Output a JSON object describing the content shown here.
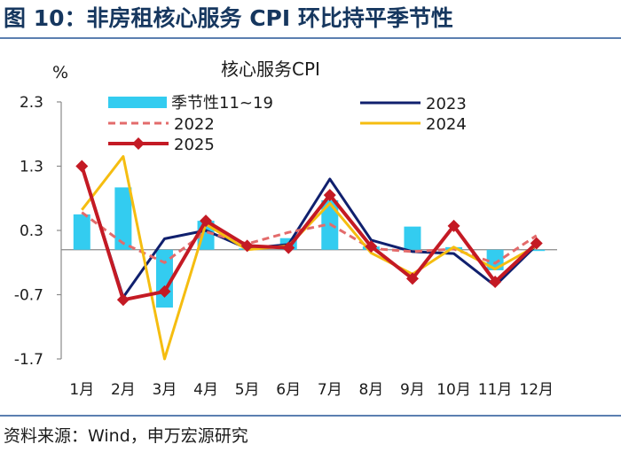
{
  "header": {
    "title": "图 10：非房租核心服务 CPI 环比持平季节性"
  },
  "footer": {
    "source": "资料来源：Wind，申万宏源研究"
  },
  "chart_data": {
    "type": "line",
    "title": "核心服务CPI",
    "ylabel": "%",
    "xlabel": "",
    "categories": [
      "1月",
      "2月",
      "3月",
      "4月",
      "5月",
      "6月",
      "7月",
      "8月",
      "9月",
      "10月",
      "11月",
      "12月"
    ],
    "yticks": [
      "2.3",
      "1.3",
      "0.3",
      "-0.7",
      "-1.7"
    ],
    "ylim": [
      -1.7,
      2.3
    ],
    "grid": false,
    "legend_position": "top",
    "bar_series": {
      "name": "季节性11~19",
      "color": "#33ccf0",
      "values": [
        0.55,
        0.97,
        -0.9,
        0.45,
        0.02,
        0.18,
        0.77,
        0.05,
        0.36,
        0.04,
        -0.32,
        -0.02
      ]
    },
    "series": [
      {
        "name": "2023",
        "color": "#10206e",
        "style": "solid",
        "marker": "none",
        "values": [
          1.3,
          -0.74,
          0.17,
          0.3,
          0.02,
          0.08,
          1.1,
          0.15,
          -0.03,
          -0.06,
          -0.56,
          0.07
        ]
      },
      {
        "name": "2022",
        "color": "#e36b6b",
        "style": "dashed",
        "marker": "none",
        "values": [
          0.58,
          0.1,
          -0.2,
          0.28,
          0.09,
          0.27,
          0.4,
          0.02,
          -0.03,
          0.01,
          -0.21,
          0.22
        ]
      },
      {
        "name": "2024",
        "color": "#f5bd10",
        "style": "solid",
        "marker": "none",
        "values": [
          0.62,
          1.45,
          -1.7,
          0.4,
          0.0,
          0.06,
          0.72,
          -0.05,
          -0.38,
          0.04,
          -0.3,
          0.06
        ]
      },
      {
        "name": "2025",
        "color": "#c41a24",
        "style": "solid",
        "marker": "diamond",
        "values": [
          1.3,
          -0.78,
          -0.65,
          0.45,
          0.06,
          0.03,
          0.85,
          0.05,
          -0.45,
          0.37,
          -0.5,
          0.1
        ]
      }
    ]
  }
}
